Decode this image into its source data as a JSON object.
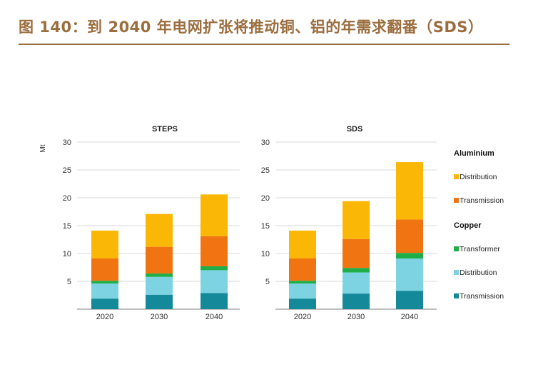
{
  "header": {
    "title": "图 140：到 2040 年电网扩张将推动铜、铝的年需求翻番（SDS）"
  },
  "chart_data": [
    {
      "type": "bar",
      "stacked": true,
      "title": "STEPS",
      "ylabel": "Mt",
      "ylim": [
        0,
        30
      ],
      "yticks": [
        5,
        10,
        15,
        20,
        25,
        30
      ],
      "categories": [
        "2020",
        "2030",
        "2040"
      ],
      "series": [
        {
          "name": "Transmission",
          "group": "Copper",
          "color": "#13899a",
          "values": [
            1.9,
            2.6,
            2.9
          ]
        },
        {
          "name": "Distribution",
          "group": "Copper",
          "color": "#7dd3e2",
          "values": [
            2.7,
            3.2,
            4.1
          ]
        },
        {
          "name": "Transformer",
          "group": "Copper",
          "color": "#1fae48",
          "values": [
            0.5,
            0.6,
            0.7
          ]
        },
        {
          "name": "Transmission",
          "group": "Aluminium",
          "color": "#f07412",
          "values": [
            4.0,
            4.8,
            5.4
          ]
        },
        {
          "name": "Distribution",
          "group": "Aluminium",
          "color": "#fbb705",
          "values": [
            5.0,
            5.9,
            7.5
          ]
        }
      ]
    },
    {
      "type": "bar",
      "stacked": true,
      "title": "SDS",
      "ylim": [
        0,
        30
      ],
      "yticks": [
        5,
        10,
        15,
        20,
        25,
        30
      ],
      "categories": [
        "2020",
        "2030",
        "2040"
      ],
      "series": [
        {
          "name": "Transmission",
          "group": "Copper",
          "color": "#13899a",
          "values": [
            1.9,
            2.8,
            3.3
          ]
        },
        {
          "name": "Distribution",
          "group": "Copper",
          "color": "#7dd3e2",
          "values": [
            2.7,
            3.8,
            5.8
          ]
        },
        {
          "name": "Transformer",
          "group": "Copper",
          "color": "#1fae48",
          "values": [
            0.5,
            0.8,
            1.0
          ]
        },
        {
          "name": "Transmission",
          "group": "Aluminium",
          "color": "#f07412",
          "values": [
            4.0,
            5.2,
            6.0
          ]
        },
        {
          "name": "Distribution",
          "group": "Aluminium",
          "color": "#fbb705",
          "values": [
            5.0,
            6.8,
            10.3
          ]
        }
      ]
    }
  ],
  "legend": {
    "groups": [
      {
        "heading": "Aluminium",
        "items": [
          {
            "label": "Distribution",
            "color": "#fbb705"
          },
          {
            "label": "Transmission",
            "color": "#f07412"
          }
        ]
      },
      {
        "heading": "Copper",
        "items": [
          {
            "label": "Transformer",
            "color": "#1fae48"
          },
          {
            "label": "Distribution",
            "color": "#7dd3e2"
          },
          {
            "label": "Transmission",
            "color": "#13899a"
          }
        ]
      }
    ]
  }
}
